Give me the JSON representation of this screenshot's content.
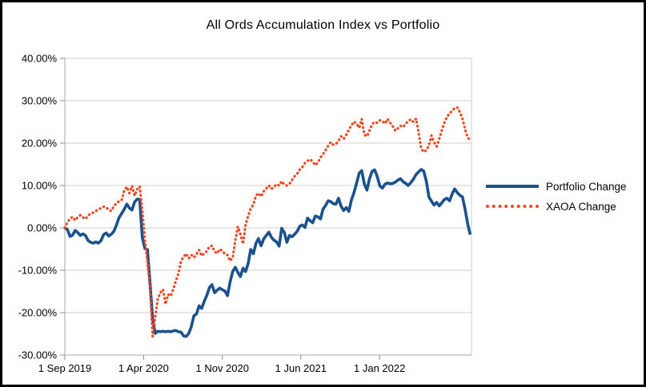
{
  "window": {
    "background": "#ffffff",
    "frame_border_color": "#000000"
  },
  "chart_data": {
    "type": "line",
    "title": "All Ords Accumulation Index vs Portfolio",
    "grid": "horizontal",
    "colors": {
      "grid": "#cfcfcf",
      "axis": "#aaaaaa",
      "tick": "#8c8c8c",
      "text": "#000000",
      "portfolio_blue": "#1a5290",
      "xaoa_orange": "#ff4019"
    },
    "y_axis": {
      "min": -30,
      "max": 40,
      "format": "percent",
      "tick_values": [
        40,
        30,
        20,
        10,
        0,
        -10,
        -20,
        -30
      ],
      "tick_labels": [
        "40.00%",
        "30.00%",
        "20.00%",
        "10.00%",
        "0.00%",
        "-10.00%",
        "-20.00%",
        "-30.00%"
      ]
    },
    "x_axis": {
      "unit": "weeks since first label date",
      "domain_weeks": [
        0,
        157.5
      ],
      "tick_week_positions": [
        0,
        30.5,
        61,
        91.4,
        121.9
      ],
      "tick_labels": [
        "1 Sep 2019",
        "1 Apr 2020",
        "1 Nov 2020",
        "1 Jun 2021",
        "1 Jan 2022"
      ]
    },
    "legend": {
      "position": "right",
      "entries": [
        {
          "label": "Portfolio Change",
          "color": "#1a5290",
          "style": "solid"
        },
        {
          "label": "XAOA Change",
          "color": "#ff4019",
          "style": "dotted"
        }
      ]
    },
    "series": [
      {
        "name": "Portfolio Change",
        "color": "#1a5290",
        "style": "solid",
        "values": [
          0.0,
          -0.4,
          -2.0,
          -1.7,
          -0.6,
          -1.1,
          -1.8,
          -1.4,
          -1.8,
          -3.0,
          -3.4,
          -3.6,
          -3.3,
          -3.6,
          -3.0,
          -1.6,
          -1.2,
          -1.9,
          -1.5,
          -0.8,
          0.7,
          2.4,
          3.4,
          4.4,
          5.6,
          4.7,
          4.2,
          6.1,
          6.8,
          6.7,
          -2.3,
          -4.9,
          -5.1,
          -13.0,
          -21.5,
          -24.9,
          -24.4,
          -24.5,
          -24.4,
          -24.5,
          -24.4,
          -24.5,
          -24.3,
          -24.2,
          -24.5,
          -24.6,
          -25.5,
          -25.6,
          -24.9,
          -23.3,
          -20.7,
          -20.3,
          -18.4,
          -19.0,
          -17.3,
          -15.9,
          -14.1,
          -13.4,
          -15.3,
          -14.7,
          -14.2,
          -14.6,
          -14.9,
          -16.0,
          -12.8,
          -10.3,
          -9.3,
          -10.5,
          -11.5,
          -9.5,
          -10.3,
          -8.4,
          -5.1,
          -6.1,
          -3.7,
          -2.5,
          -4.2,
          -2.6,
          -1.8,
          -1.0,
          -2.2,
          -2.9,
          -3.3,
          -4.3,
          -0.1,
          -1.1,
          -3.4,
          -1.8,
          -2.1,
          -1.5,
          -0.8,
          0.4,
          0.7,
          0.1,
          2.3,
          1.7,
          1.2,
          2.8,
          2.6,
          2.1,
          4.4,
          5.3,
          6.4,
          6.2,
          5.7,
          5.6,
          7.0,
          5.1,
          4.1,
          4.8,
          3.9,
          6.6,
          8.3,
          10.6,
          12.9,
          13.5,
          10.4,
          8.9,
          11.6,
          13.3,
          13.7,
          12.1,
          9.9,
          9.4,
          10.3,
          10.6,
          10.4,
          10.5,
          10.8,
          11.3,
          11.6,
          10.9,
          10.5,
          10.0,
          10.7,
          11.5,
          12.6,
          13.2,
          13.8,
          13.4,
          11.0,
          7.3,
          6.3,
          5.4,
          6.0,
          5.2,
          5.9,
          6.7,
          7.0,
          6.4,
          8.0,
          9.2,
          8.3,
          7.7,
          7.3,
          4.5,
          1.0,
          -1.6
        ]
      },
      {
        "name": "XAOA Change",
        "color": "#ff4019",
        "style": "dotted",
        "values": [
          0.0,
          1.3,
          2.2,
          2.6,
          1.8,
          2.5,
          3.0,
          2.5,
          2.1,
          2.9,
          3.4,
          3.6,
          4.0,
          4.3,
          4.7,
          5.0,
          4.9,
          4.2,
          4.0,
          5.2,
          5.8,
          6.3,
          6.6,
          8.8,
          9.7,
          8.2,
          9.9,
          7.6,
          9.1,
          9.8,
          4.0,
          -3.0,
          -8.0,
          -14.0,
          -25.6,
          -21.0,
          -16.7,
          -15.3,
          -14.5,
          -18.0,
          -15.7,
          -16.1,
          -14.4,
          -12.5,
          -10.8,
          -7.8,
          -6.8,
          -6.1,
          -7.2,
          -6.4,
          -7.0,
          -6.2,
          -5.2,
          -6.6,
          -6.0,
          -5.5,
          -4.4,
          -4.2,
          -5.6,
          -6.0,
          -5.0,
          -5.4,
          -6.2,
          -6.4,
          -7.8,
          -7.0,
          -3.0,
          0.3,
          -1.5,
          -3.8,
          0.8,
          2.8,
          4.6,
          5.5,
          7.6,
          8.2,
          7.4,
          8.6,
          9.3,
          10.0,
          9.2,
          9.7,
          10.3,
          10.0,
          11.0,
          10.2,
          10.0,
          10.4,
          11.3,
          12.2,
          12.8,
          13.8,
          14.4,
          15.3,
          15.8,
          16.2,
          15.6,
          14.8,
          15.4,
          16.6,
          17.4,
          18.4,
          19.4,
          20.2,
          19.6,
          19.8,
          20.6,
          21.6,
          21.0,
          22.0,
          23.2,
          24.2,
          25.1,
          24.6,
          23.6,
          25.7,
          22.0,
          21.6,
          23.0,
          24.4,
          25.0,
          24.8,
          25.4,
          25.2,
          24.6,
          25.7,
          24.8,
          24.0,
          22.9,
          23.5,
          24.1,
          23.8,
          24.6,
          25.2,
          25.6,
          25.0,
          25.8,
          22.5,
          18.8,
          17.9,
          18.3,
          19.5,
          21.8,
          20.2,
          19.2,
          21.0,
          23.0,
          24.8,
          26.2,
          27.0,
          27.6,
          28.3,
          28.4,
          27.3,
          25.8,
          23.3,
          21.3,
          20.7
        ]
      }
    ]
  }
}
